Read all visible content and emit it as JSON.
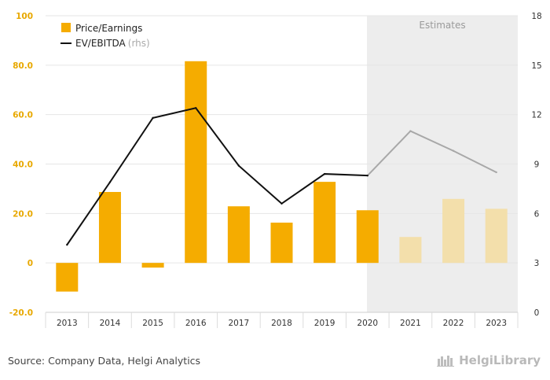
{
  "chart_data": {
    "type": "bar",
    "categories": [
      "2013",
      "2014",
      "2015",
      "2016",
      "2017",
      "2018",
      "2019",
      "2020",
      "2021",
      "2022",
      "2023"
    ],
    "series": [
      {
        "name": "Price/Earnings",
        "type": "bar",
        "axis": "left",
        "values": [
          -11.6,
          28.7,
          -1.9,
          81.6,
          22.9,
          16.3,
          32.8,
          21.3,
          10.5,
          25.9,
          21.9
        ]
      },
      {
        "name": "EV/EBITDA",
        "name_suffix": "(rhs)",
        "type": "line",
        "axis": "right",
        "values": [
          4.1,
          7.9,
          11.8,
          12.4,
          8.9,
          6.6,
          8.4,
          8.3,
          11.0,
          9.8,
          8.5
        ]
      }
    ],
    "estimates_from": "2021",
    "estimates_label": "Estimates",
    "left_axis": {
      "ticks": [
        "100",
        "80.0",
        "60.0",
        "40.0",
        "20.0",
        "0",
        "-20.0"
      ],
      "ylim": [
        -20,
        100
      ]
    },
    "right_axis": {
      "ticks": [
        "18",
        "15",
        "12",
        "9",
        "6",
        "3",
        "0"
      ],
      "ylim": [
        0,
        18
      ]
    },
    "legend_position": "top-left",
    "colors": {
      "bar": "#f5ac00",
      "bar_estimate": "#f3dfab",
      "line": "#111111",
      "line_estimate": "#a8a8a8",
      "estimate_bg": "#ededed",
      "left_tick": "#e8a800",
      "grid": "#e6e6e6"
    }
  },
  "footer": {
    "source": "Source: Company Data, Helgi Analytics",
    "logo_text": "HelgiLibrary"
  }
}
